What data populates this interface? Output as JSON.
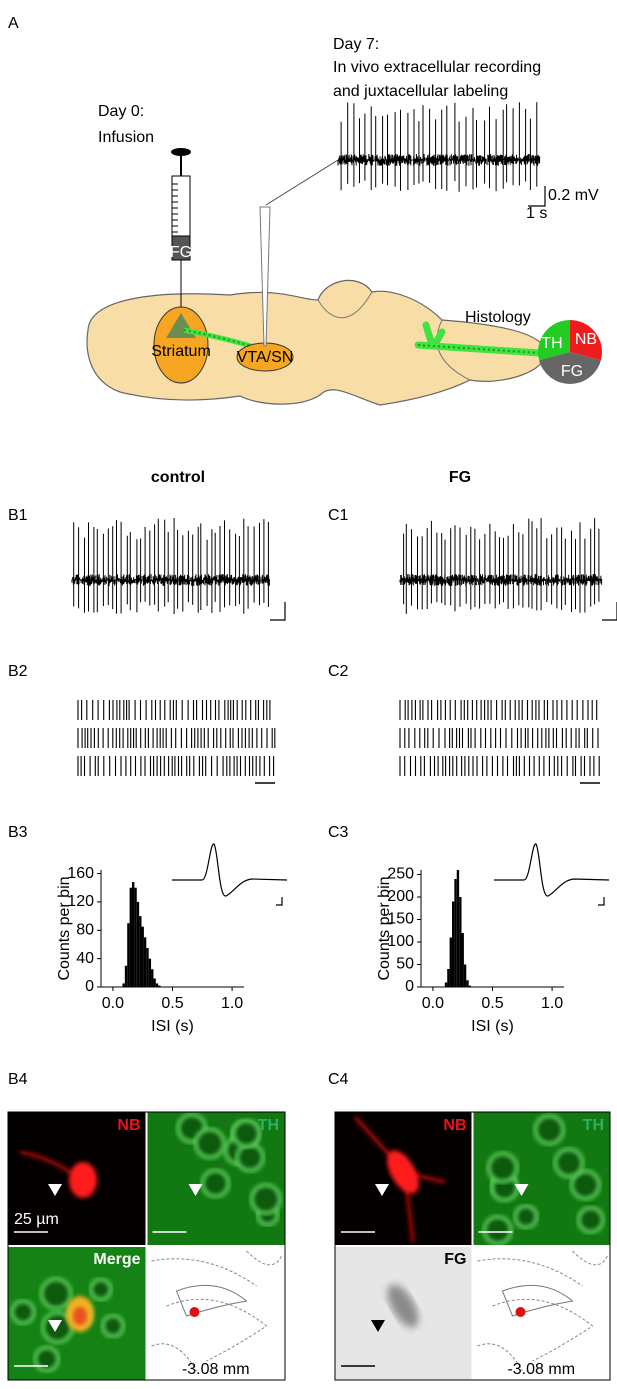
{
  "panel_a": {
    "label": "A",
    "day7": [
      "Day 7:",
      "In vivo extracellular recording",
      "and juxtacellular labeling"
    ],
    "day0": [
      "Day 0:",
      "Infusion"
    ],
    "scale_v": "0.2 mV",
    "scale_t": "1 s",
    "syringe": "FG",
    "striatum": "Striatum",
    "vta": "VTA/SN",
    "histology": "Histology",
    "pie": [
      "TH",
      "NB",
      "FG"
    ]
  },
  "columns": [
    {
      "title": "control",
      "trace_label": "B1",
      "raster_label": "B2",
      "isi_label": "B3",
      "image_label": "B4",
      "images": [
        "NB",
        "TH",
        "Merge"
      ],
      "scale": "25 µm",
      "atlas": "-3.08 mm"
    },
    {
      "title": "FG",
      "trace_label": "C1",
      "raster_label": "C2",
      "isi_label": "C3",
      "image_label": "C4",
      "images": [
        "NB",
        "TH",
        "FG"
      ],
      "atlas": "-3.08 mm"
    }
  ],
  "chart_data": [
    {
      "type": "histogram",
      "xlabel": "ISI (s)",
      "ylabel": "Counts per bin",
      "color": "#000000",
      "bins": [
        0.08,
        0.1,
        0.12,
        0.14,
        0.16,
        0.18,
        0.2,
        0.22,
        0.24,
        0.26,
        0.28,
        0.3,
        0.32,
        0.34,
        0.36,
        0.38,
        0.4
      ],
      "values": [
        5,
        30,
        90,
        140,
        148,
        140,
        120,
        100,
        85,
        70,
        55,
        40,
        25,
        12,
        5,
        2
      ],
      "xlim": [
        -0.1,
        1.1
      ],
      "xticks": [
        {
          "value": 0,
          "label": "0.0"
        },
        0.5,
        {
          "value": 1,
          "label": "1.0"
        }
      ],
      "ylim": [
        0,
        165
      ],
      "yticks": [
        0,
        40,
        80,
        120,
        160
      ]
    },
    {
      "type": "histogram",
      "xlabel": "ISI (s)",
      "ylabel": "Counts per bin",
      "color": "#000000",
      "bins": [
        0.1,
        0.12,
        0.14,
        0.16,
        0.18,
        0.2,
        0.22,
        0.24,
        0.26,
        0.28,
        0.3,
        0.32
      ],
      "values": [
        10,
        40,
        110,
        190,
        240,
        260,
        200,
        120,
        50,
        15,
        3
      ],
      "xlim": [
        -0.1,
        1.1
      ],
      "xticks": [
        {
          "value": 0,
          "label": "0.0"
        },
        0.5,
        {
          "value": 1,
          "label": "1.0"
        }
      ],
      "ylim": [
        0,
        260
      ],
      "yticks": [
        0,
        50,
        100,
        150,
        200,
        250
      ]
    }
  ]
}
